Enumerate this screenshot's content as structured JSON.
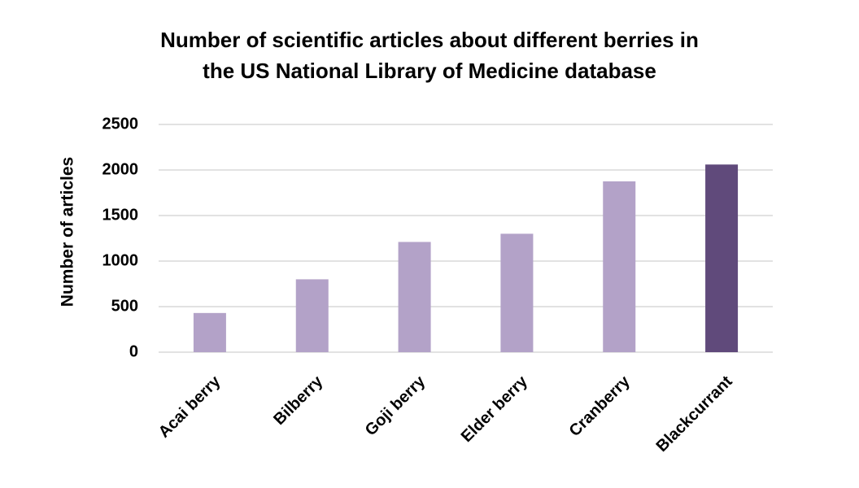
{
  "chart_data": {
    "type": "bar",
    "title_lines": [
      "Number of scientific articles about different berries in",
      "the US National Library of Medicine database"
    ],
    "xlabel": "",
    "ylabel": "Number of articles",
    "categories": [
      "Acai berry",
      "Bilberry",
      "Goji berry",
      "Elder berry",
      "Cranberry",
      "Blackcurrant"
    ],
    "values": [
      430,
      800,
      1210,
      1300,
      1875,
      2060
    ],
    "ylim": [
      0,
      2500
    ],
    "yticks": [
      0,
      500,
      1000,
      1500,
      2000,
      2500
    ],
    "grid": true,
    "legend": "none",
    "colors": {
      "bar": "#b3a2c8",
      "highlight": "#604a7b",
      "grid": "#d9d9d9"
    },
    "highlight_category": "Blackcurrant"
  }
}
